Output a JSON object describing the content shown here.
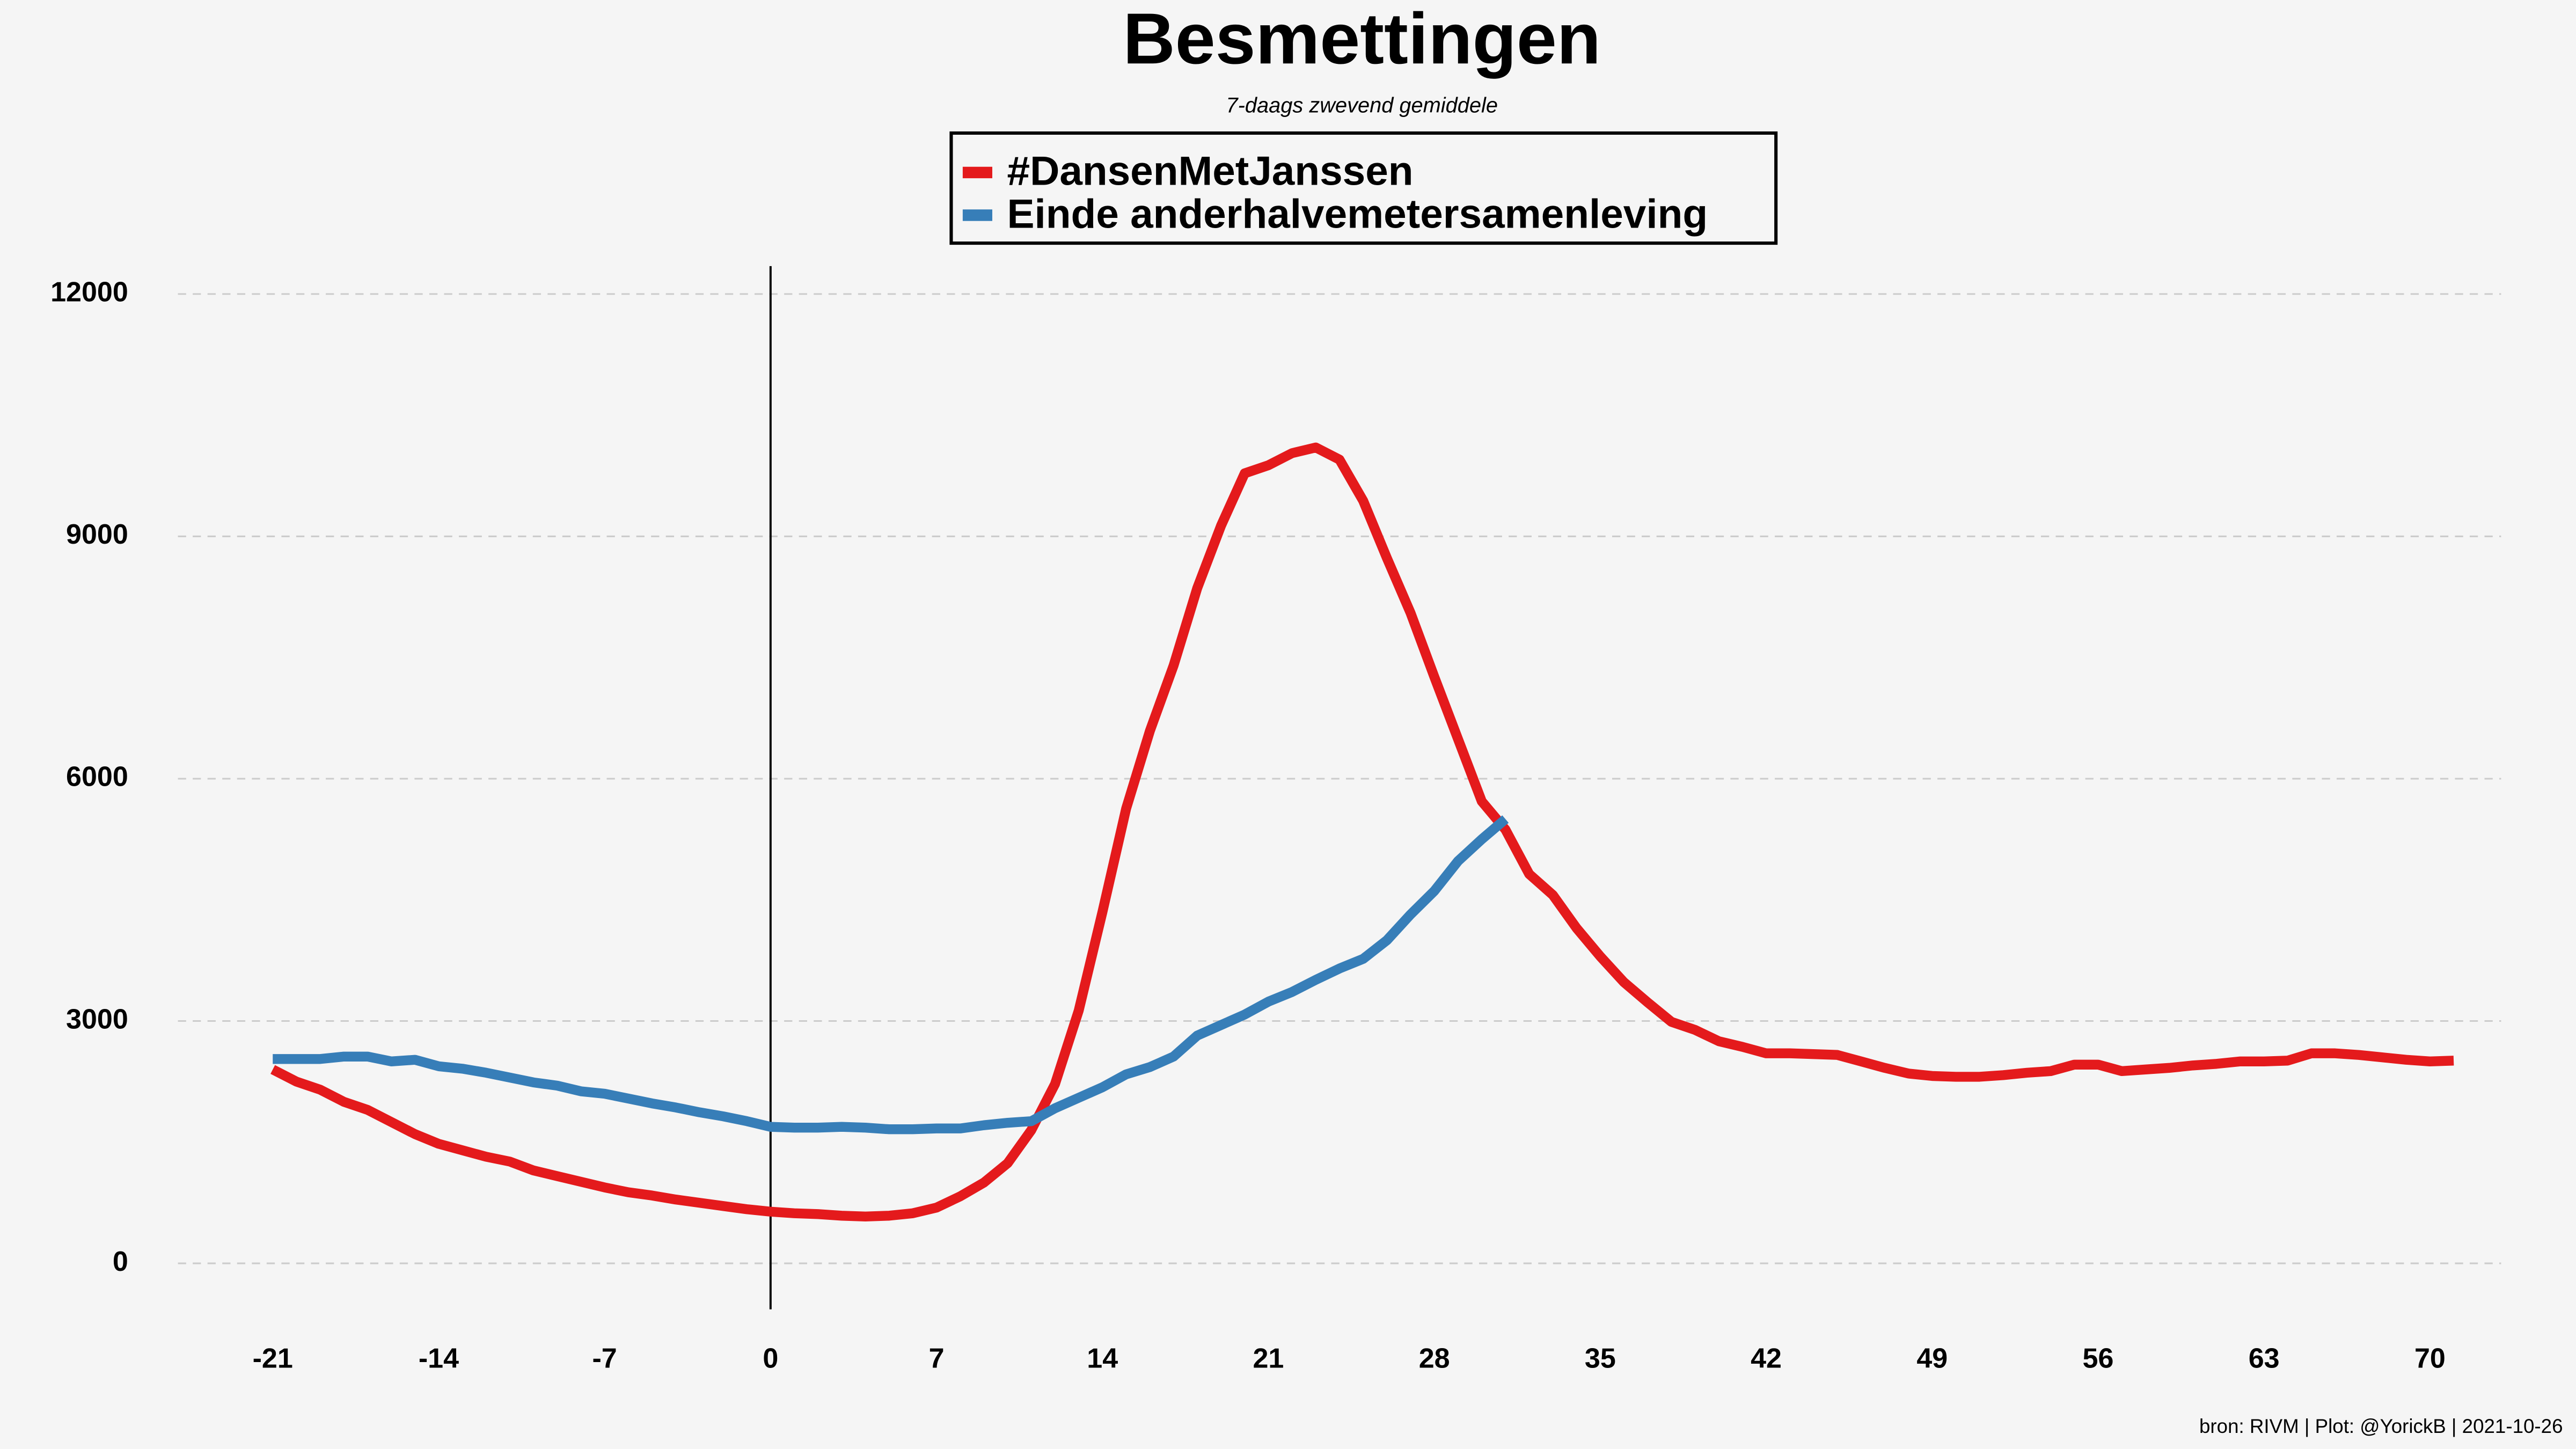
{
  "chart_data": {
    "type": "line",
    "title": "Besmettingen",
    "subtitle": "7-daags zwevend gemiddele",
    "caption": "bron: RIVM  | Plot: @YorickB |  2021-10-26",
    "x": [
      -21,
      -20,
      -19,
      -18,
      -17,
      -16,
      -15,
      -14,
      -13,
      -12,
      -11,
      -10,
      -9,
      -8,
      -7,
      -6,
      -5,
      -4,
      -3,
      -2,
      -1,
      0,
      1,
      2,
      3,
      4,
      5,
      6,
      7,
      8,
      9,
      10,
      11,
      12,
      13,
      14,
      15,
      16,
      17,
      18,
      19,
      20,
      21,
      22,
      23,
      24,
      25,
      26,
      27,
      28,
      29,
      30,
      31,
      32,
      33,
      34,
      35,
      36,
      37,
      38,
      39,
      40,
      41,
      42,
      43,
      44,
      45,
      46,
      47,
      48,
      49,
      50,
      51,
      52,
      53,
      54,
      55,
      56,
      57,
      58,
      59,
      60,
      61,
      62,
      63,
      64,
      65,
      66,
      67,
      68,
      69,
      70,
      71
    ],
    "series": [
      {
        "name": "#DansenMetJanssen",
        "color": "#e41a1c",
        "values": [
          2400,
          2250,
          2150,
          2000,
          1900,
          1750,
          1600,
          1480,
          1400,
          1320,
          1260,
          1150,
          1080,
          1010,
          940,
          880,
          840,
          790,
          750,
          710,
          670,
          640,
          620,
          610,
          590,
          580,
          590,
          620,
          690,
          830,
          1000,
          1240,
          1650,
          2220,
          3130,
          4350,
          5630,
          6590,
          7400,
          8360,
          9130,
          9780,
          9880,
          10030,
          10100,
          9950,
          9440,
          8730,
          8050,
          7260,
          6490,
          5720,
          5370,
          4820,
          4560,
          4150,
          3800,
          3480,
          3230,
          2990,
          2890,
          2750,
          2680,
          2600,
          2600,
          2590,
          2580,
          2500,
          2420,
          2350,
          2320,
          2310,
          2310,
          2330,
          2360,
          2380,
          2460,
          2460,
          2380,
          2400,
          2420,
          2450,
          2470,
          2500,
          2500,
          2510,
          2600,
          2600,
          2580,
          2550,
          2520,
          2500,
          2510
        ]
      },
      {
        "name": "Einde anderhalvemetersamenleving",
        "color": "#377eb8",
        "values": [
          2530,
          2530,
          2530,
          2560,
          2560,
          2500,
          2520,
          2440,
          2410,
          2360,
          2300,
          2240,
          2200,
          2130,
          2100,
          2040,
          1980,
          1930,
          1870,
          1820,
          1760,
          1690,
          1680,
          1680,
          1690,
          1680,
          1660,
          1660,
          1670,
          1670,
          1710,
          1740,
          1760,
          1920,
          2050,
          2180,
          2340,
          2430,
          2560,
          2820,
          2950,
          3080,
          3240,
          3360,
          3510,
          3650,
          3770,
          4000,
          4320,
          4610,
          4980,
          5250,
          5500,
          null,
          null,
          null,
          null,
          null,
          null,
          null,
          null,
          null,
          null,
          null,
          null,
          null,
          null,
          null,
          null,
          null,
          null,
          null,
          null,
          null,
          null,
          null,
          null,
          null,
          null,
          null,
          null,
          null,
          null,
          null,
          null,
          null,
          null,
          null,
          null,
          null,
          null,
          null,
          null
        ]
      }
    ],
    "xlim": [
      -25,
      73
    ],
    "ylim": [
      -600,
      12400
    ],
    "xticks": [
      -21,
      -14,
      -7,
      0,
      7,
      14,
      21,
      28,
      35,
      42,
      49,
      56,
      63,
      70
    ],
    "yticks": [
      0,
      3000,
      6000,
      9000,
      12000
    ],
    "reference_line_x": 0,
    "grid": true,
    "legend": "top"
  }
}
